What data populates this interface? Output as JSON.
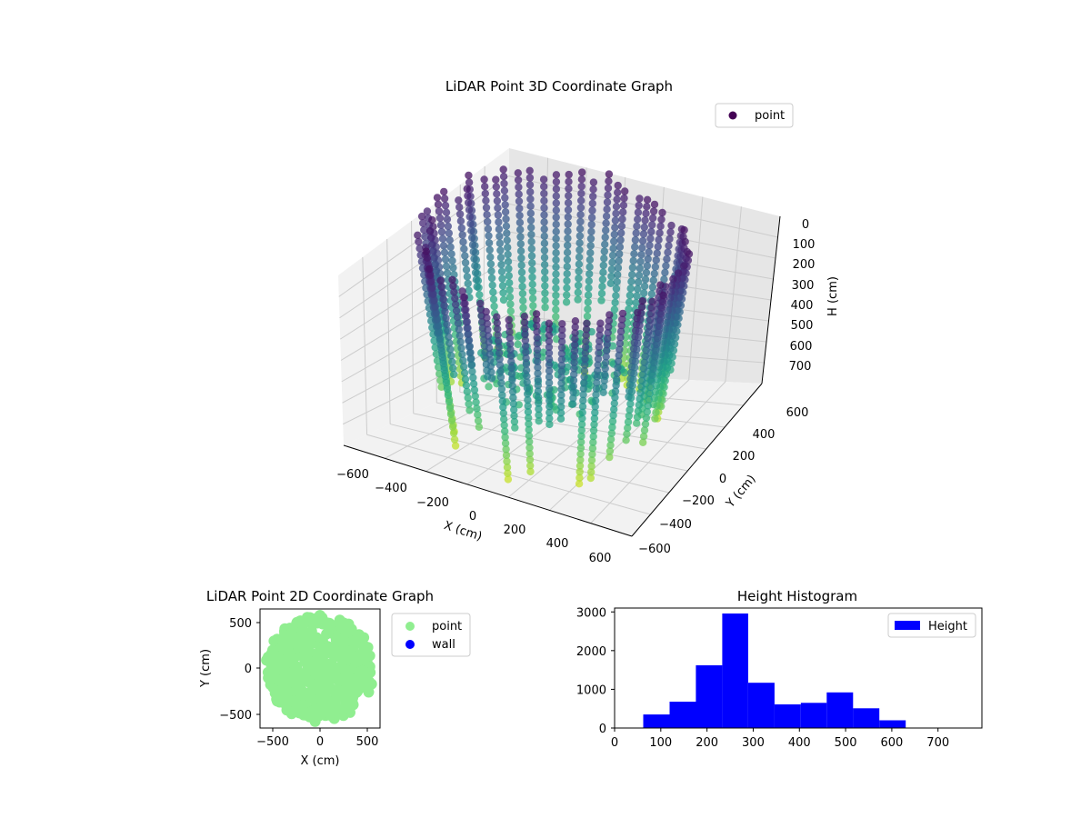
{
  "colors": {
    "point_2d": "#90ee90",
    "wall_2d": "#0000ff",
    "histogram": "#0000ff",
    "legend_3d_marker": "#440154",
    "colormap": "viridis"
  },
  "chart_data": [
    {
      "type": "scatter",
      "projection": "3d",
      "title": "LiDAR Point 3D Coordinate Graph",
      "xlabel": "X (cm)",
      "ylabel": "Y (cm)",
      "zlabel": "H (cm)",
      "xticks": [
        "−600",
        "−400",
        "−200",
        "0",
        "200",
        "400",
        "600"
      ],
      "yticks": [
        "600",
        "400",
        "200",
        "0",
        "−200",
        "−400",
        "−600"
      ],
      "zticks": [
        "0",
        "100",
        "200",
        "300",
        "400",
        "500",
        "600",
        "700"
      ],
      "xlim": [
        -600,
        600
      ],
      "ylim": [
        -600,
        600
      ],
      "zlim": [
        750,
        0
      ],
      "z_inverted": true,
      "colored_by": "height (viridis)",
      "legend": [
        "point"
      ],
      "legend_position": "upper right",
      "grid": true,
      "shape": "ring of points, radius about 500 cm, heights about 50–700 cm"
    },
    {
      "type": "scatter",
      "title": "LiDAR Point 2D Coordinate Graph",
      "xlabel": "X (cm)",
      "ylabel": "Y (cm)",
      "xticks": [
        "−500",
        "0",
        "500"
      ],
      "yticks": [
        "500",
        "0",
        "−500"
      ],
      "xlim": [
        -620,
        620
      ],
      "ylim": [
        -620,
        620
      ],
      "series": [
        {
          "name": "point",
          "color": "#90ee90",
          "shape": "filled disc, radius about 560 cm centred at origin"
        },
        {
          "name": "wall",
          "color": "#0000ff"
        }
      ],
      "legend_position": "outside right"
    },
    {
      "type": "bar",
      "subtype": "histogram",
      "title": "Height Histogram",
      "xlabel": "",
      "ylabel": "",
      "xticks": [
        "0",
        "100",
        "200",
        "300",
        "400",
        "500",
        "600",
        "700"
      ],
      "yticks": [
        "0",
        "1000",
        "2000",
        "3000"
      ],
      "xlim": [
        0,
        795
      ],
      "ylim": [
        0,
        3100
      ],
      "bin_edges": [
        62,
        119,
        176,
        233,
        289,
        346,
        403,
        459,
        516,
        573,
        630
      ],
      "values": [
        350,
        680,
        1620,
        2960,
        1170,
        610,
        650,
        920,
        510,
        200
      ],
      "series": [
        {
          "name": "Height",
          "color": "#0000ff"
        }
      ],
      "legend_position": "upper right"
    }
  ]
}
